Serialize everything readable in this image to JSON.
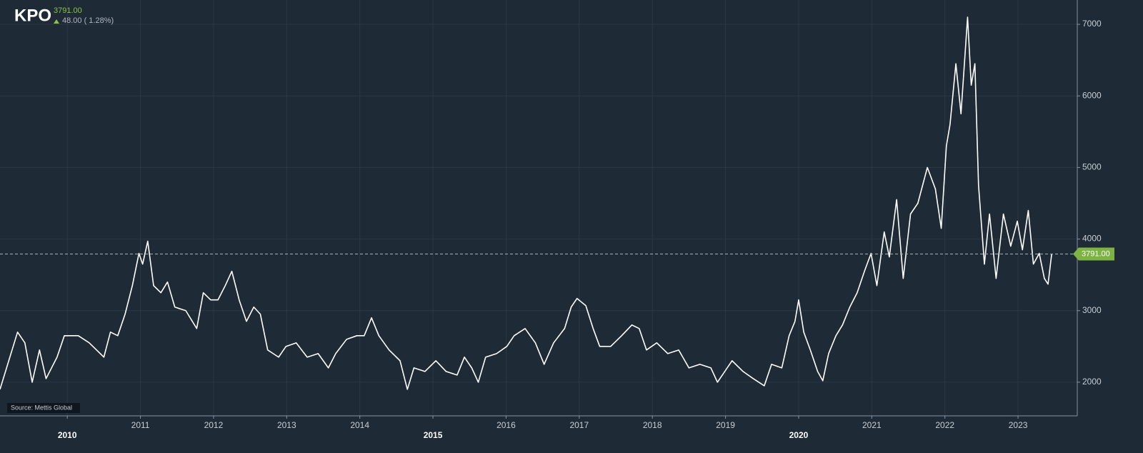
{
  "header": {
    "symbol": "KPO",
    "price": "3791.00",
    "change": "48.00 ( 1.28%)"
  },
  "source": "Source: Mettis Global",
  "chart_data": {
    "type": "line",
    "x": [
      2009.08,
      2009.32,
      2009.42,
      2009.52,
      2009.62,
      2009.71,
      2009.86,
      2009.96,
      2010.06,
      2010.15,
      2010.3,
      2010.5,
      2010.59,
      2010.69,
      2010.79,
      2010.89,
      2010.98,
      2011.03,
      2011.1,
      2011.18,
      2011.28,
      2011.37,
      2011.47,
      2011.62,
      2011.77,
      2011.86,
      2011.96,
      2012.06,
      2012.16,
      2012.25,
      2012.35,
      2012.45,
      2012.55,
      2012.64,
      2012.74,
      2012.89,
      2012.99,
      2013.13,
      2013.28,
      2013.43,
      2013.57,
      2013.67,
      2013.82,
      2013.96,
      2014.06,
      2014.16,
      2014.26,
      2014.4,
      2014.55,
      2014.65,
      2014.74,
      2014.89,
      2015.04,
      2015.18,
      2015.33,
      2015.43,
      2015.53,
      2015.62,
      2015.72,
      2015.87,
      2016.01,
      2016.11,
      2016.26,
      2016.4,
      2016.52,
      2016.65,
      2016.8,
      2016.89,
      2016.97,
      2017.09,
      2017.19,
      2017.28,
      2017.43,
      2017.58,
      2017.72,
      2017.82,
      2017.92,
      2018.06,
      2018.21,
      2018.36,
      2018.5,
      2018.65,
      2018.8,
      2018.89,
      2018.99,
      2019.09,
      2019.24,
      2019.38,
      2019.53,
      2019.63,
      2019.77,
      2019.87,
      2019.95,
      2020.0,
      2020.07,
      2020.16,
      2020.26,
      2020.33,
      2020.41,
      2020.51,
      2020.6,
      2020.7,
      2020.8,
      2020.9,
      2020.99,
      2021.07,
      2021.17,
      2021.24,
      2021.34,
      2021.43,
      2021.53,
      2021.63,
      2021.76,
      2021.87,
      2021.95,
      2022.02,
      2022.07,
      2022.15,
      2022.22,
      2022.31,
      2022.36,
      2022.41,
      2022.46,
      2022.54,
      2022.61,
      2022.7,
      2022.8,
      2022.9,
      2022.99,
      2023.06,
      2023.14,
      2023.21,
      2023.29,
      2023.36,
      2023.41,
      2023.46
    ],
    "series": [
      {
        "color": "#ffffff",
        "values": [
          1900,
          2700,
          2550,
          2000,
          2450,
          2050,
          2350,
          2650,
          2650,
          2650,
          2550,
          2350,
          2700,
          2650,
          2950,
          3350,
          3800,
          3650,
          3970,
          3350,
          3250,
          3400,
          3050,
          3000,
          2750,
          3250,
          3150,
          3150,
          3350,
          3550,
          3150,
          2850,
          3050,
          2950,
          2450,
          2350,
          2500,
          2550,
          2350,
          2400,
          2200,
          2400,
          2600,
          2650,
          2650,
          2900,
          2650,
          2450,
          2300,
          1900,
          2200,
          2150,
          2300,
          2150,
          2100,
          2350,
          2200,
          2000,
          2350,
          2400,
          2500,
          2650,
          2750,
          2550,
          2250,
          2550,
          2750,
          3050,
          3170,
          3070,
          2750,
          2500,
          2500,
          2650,
          2800,
          2750,
          2450,
          2550,
          2400,
          2450,
          2200,
          2250,
          2200,
          2000,
          2150,
          2300,
          2150,
          2050,
          1950,
          2250,
          2200,
          2650,
          2850,
          3150,
          2700,
          2450,
          2150,
          2020,
          2400,
          2650,
          2800,
          3050,
          3250,
          3550,
          3800,
          3350,
          4100,
          3750,
          4550,
          3450,
          4350,
          4500,
          5000,
          4700,
          4150,
          5300,
          5600,
          6450,
          5750,
          7100,
          6150,
          6450,
          4750,
          3650,
          4350,
          3450,
          4350,
          3900,
          4250,
          3850,
          4400,
          3650,
          3800,
          3450,
          3370,
          3791
        ]
      }
    ],
    "last_value": {
      "value": 3791,
      "label": "3791.00"
    },
    "xlim": [
      2009.08,
      2023.81
    ],
    "xticks": [
      2010,
      2011,
      2012,
      2013,
      2014,
      2015,
      2016,
      2017,
      2018,
      2019,
      2020,
      2021,
      2022,
      2023
    ],
    "ylim": [
      1530,
      7340
    ],
    "yticks": [
      2000,
      3000,
      4000,
      5000,
      6000,
      7000
    ],
    "grid": true
  }
}
